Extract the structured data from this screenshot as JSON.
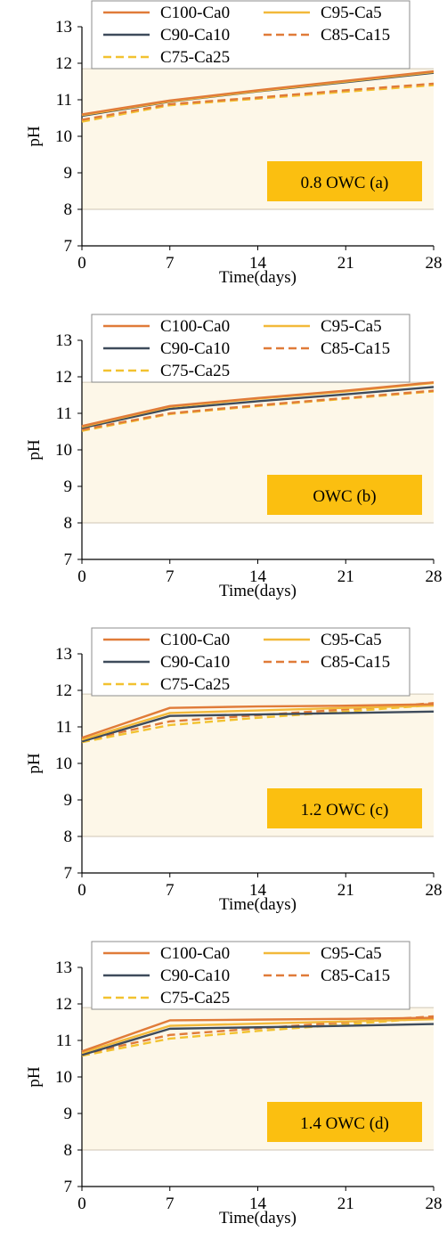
{
  "colors": {
    "band_fill": "#fdf7e8",
    "band_line": "#cfc6b4",
    "axis": "#000000",
    "label_box": "#fbbf10"
  },
  "chart_data": [
    {
      "type": "line",
      "label": "0.8 OWC (a)",
      "xlabel": "Time(days)",
      "ylabel": "pH",
      "x": [
        0,
        7,
        14,
        21,
        28
      ],
      "x_ticks": [
        "0",
        "7",
        "14",
        "21",
        "28"
      ],
      "y_ticks": [
        "7",
        "8",
        "9",
        "10",
        "11",
        "12",
        "13"
      ],
      "xlim": [
        0,
        28
      ],
      "ylim": [
        7,
        13
      ],
      "band": [
        8,
        11.85
      ],
      "legend_position": "top",
      "series": [
        {
          "name": "C100-Ca0",
          "color": "#e07b39",
          "dash": false,
          "values": [
            10.6,
            10.98,
            11.26,
            11.52,
            11.78
          ]
        },
        {
          "name": "C95-Ca5",
          "color": "#f2b93a",
          "dash": false,
          "values": [
            10.58,
            10.96,
            11.24,
            11.5,
            11.76
          ]
        },
        {
          "name": "C90-Ca10",
          "color": "#3e4b5b",
          "dash": false,
          "values": [
            10.56,
            10.95,
            11.23,
            11.48,
            11.74
          ]
        },
        {
          "name": "C85-Ca15",
          "color": "#e07b39",
          "dash": true,
          "values": [
            10.45,
            10.88,
            11.06,
            11.26,
            11.44
          ]
        },
        {
          "name": "C75-Ca25",
          "color": "#f2c230",
          "dash": true,
          "values": [
            10.4,
            10.85,
            11.03,
            11.22,
            11.4
          ]
        }
      ]
    },
    {
      "type": "line",
      "label": "OWC (b)",
      "xlabel": "Time(days)",
      "ylabel": "pH",
      "x": [
        0,
        7,
        14,
        21,
        28
      ],
      "x_ticks": [
        "0",
        "7",
        "14",
        "21",
        "28"
      ],
      "y_ticks": [
        "7",
        "8",
        "9",
        "10",
        "11",
        "12",
        "13"
      ],
      "xlim": [
        0,
        28
      ],
      "ylim": [
        7,
        13
      ],
      "band": [
        8,
        11.85
      ],
      "legend_position": "top",
      "series": [
        {
          "name": "C100-Ca0",
          "color": "#e07b39",
          "dash": false,
          "values": [
            10.65,
            11.2,
            11.42,
            11.62,
            11.85
          ]
        },
        {
          "name": "C95-Ca5",
          "color": "#f2b93a",
          "dash": false,
          "values": [
            10.63,
            11.18,
            11.4,
            11.6,
            11.83
          ]
        },
        {
          "name": "C90-Ca10",
          "color": "#3e4b5b",
          "dash": false,
          "values": [
            10.6,
            11.12,
            11.33,
            11.52,
            11.72
          ]
        },
        {
          "name": "C85-Ca15",
          "color": "#e07b39",
          "dash": true,
          "values": [
            10.55,
            11.0,
            11.22,
            11.42,
            11.62
          ]
        },
        {
          "name": "C75-Ca25",
          "color": "#f2c230",
          "dash": true,
          "values": [
            10.52,
            10.98,
            11.2,
            11.4,
            11.6
          ]
        }
      ]
    },
    {
      "type": "line",
      "label": "1.2 OWC (c)",
      "xlabel": "Time(days)",
      "ylabel": "pH",
      "x": [
        0,
        7,
        14,
        21,
        28
      ],
      "x_ticks": [
        "0",
        "7",
        "14",
        "21",
        "28"
      ],
      "y_ticks": [
        "7",
        "8",
        "9",
        "10",
        "11",
        "12",
        "13"
      ],
      "xlim": [
        0,
        28
      ],
      "ylim": [
        7,
        13
      ],
      "band": [
        8,
        11.9
      ],
      "legend_position": "top",
      "series": [
        {
          "name": "C100-Ca0",
          "color": "#e07b39",
          "dash": false,
          "values": [
            10.7,
            11.52,
            11.56,
            11.58,
            11.62
          ]
        },
        {
          "name": "C95-Ca5",
          "color": "#f2b93a",
          "dash": false,
          "values": [
            10.65,
            11.38,
            11.45,
            11.52,
            11.58
          ]
        },
        {
          "name": "C90-Ca10",
          "color": "#3e4b5b",
          "dash": false,
          "values": [
            10.6,
            11.3,
            11.34,
            11.38,
            11.42
          ]
        },
        {
          "name": "C85-Ca15",
          "color": "#e07b39",
          "dash": true,
          "values": [
            10.62,
            11.15,
            11.32,
            11.48,
            11.65
          ]
        },
        {
          "name": "C75-Ca25",
          "color": "#f2c230",
          "dash": true,
          "values": [
            10.58,
            11.05,
            11.25,
            11.42,
            11.6
          ]
        }
      ]
    },
    {
      "type": "line",
      "label": "1.4 OWC (d)",
      "xlabel": "Time(days)",
      "ylabel": "pH",
      "x": [
        0,
        7,
        14,
        21,
        28
      ],
      "x_ticks": [
        "0",
        "7",
        "14",
        "21",
        "28"
      ],
      "y_ticks": [
        "7",
        "8",
        "9",
        "10",
        "11",
        "12",
        "13"
      ],
      "xlim": [
        0,
        28
      ],
      "ylim": [
        7,
        13
      ],
      "band": [
        8,
        11.9
      ],
      "legend_position": "top",
      "series": [
        {
          "name": "C100-Ca0",
          "color": "#e07b39",
          "dash": false,
          "values": [
            10.7,
            11.55,
            11.57,
            11.59,
            11.62
          ]
        },
        {
          "name": "C95-Ca5",
          "color": "#f2b93a",
          "dash": false,
          "values": [
            10.66,
            11.4,
            11.46,
            11.52,
            11.58
          ]
        },
        {
          "name": "C90-Ca10",
          "color": "#3e4b5b",
          "dash": false,
          "values": [
            10.6,
            11.32,
            11.36,
            11.4,
            11.45
          ]
        },
        {
          "name": "C85-Ca15",
          "color": "#e07b39",
          "dash": true,
          "values": [
            10.62,
            11.15,
            11.33,
            11.5,
            11.66
          ]
        },
        {
          "name": "C75-Ca25",
          "color": "#f2c230",
          "dash": true,
          "values": [
            10.58,
            11.05,
            11.26,
            11.44,
            11.62
          ]
        }
      ]
    }
  ]
}
